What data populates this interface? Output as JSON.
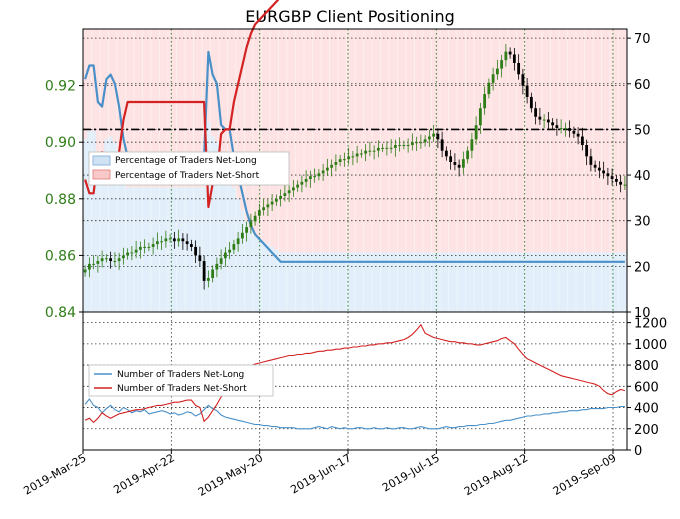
{
  "chart_data": [
    {
      "type": "candlestick",
      "title": "EURGBP Client Positioning",
      "x_ticks": [
        "2019-Mar-25",
        "2019-Apr-22",
        "2019-May-20",
        "2019-Jun-17",
        "2019-Jul-15",
        "2019-Aug-12",
        "2019-Sep-09"
      ],
      "price_axis": {
        "ylim": [
          0.84,
          0.94
        ],
        "ticks": [
          "0.84",
          "0.86",
          "0.88",
          "0.90",
          "0.92"
        ]
      },
      "percent_axis": {
        "ylim": [
          10,
          72
        ],
        "ticks": [
          "10",
          "20",
          "30",
          "40",
          "50",
          "60",
          "70"
        ]
      },
      "reference_line": {
        "axis": "percent",
        "value": 50,
        "style": "dash-dot"
      },
      "colors": {
        "up": "#2e7d17",
        "down": "#000000",
        "net_long": "#4a90c8",
        "net_short": "#d42222",
        "long_fill": "#e2eef9",
        "short_fill": "#fde3e3",
        "grid": "#1f7a1f"
      },
      "legend": {
        "position": "left",
        "entries": [
          "Percentage of Traders Net-Long",
          "Percentage of Traders Net-Short"
        ]
      },
      "price_close": [
        0.855,
        0.857,
        0.857,
        0.858,
        0.859,
        0.859,
        0.858,
        0.858,
        0.859,
        0.86,
        0.861,
        0.861,
        0.862,
        0.863,
        0.863,
        0.863,
        0.864,
        0.865,
        0.865,
        0.866,
        0.866,
        0.865,
        0.866,
        0.865,
        0.864,
        0.863,
        0.86,
        0.858,
        0.851,
        0.852,
        0.855,
        0.857,
        0.859,
        0.861,
        0.862,
        0.864,
        0.866,
        0.868,
        0.87,
        0.872,
        0.874,
        0.876,
        0.877,
        0.878,
        0.879,
        0.88,
        0.881,
        0.882,
        0.883,
        0.884,
        0.885,
        0.886,
        0.887,
        0.888,
        0.888,
        0.889,
        0.89,
        0.891,
        0.892,
        0.893,
        0.894,
        0.894,
        0.895,
        0.895,
        0.896,
        0.896,
        0.897,
        0.897,
        0.897,
        0.898,
        0.898,
        0.898,
        0.898,
        0.899,
        0.899,
        0.899,
        0.899,
        0.9,
        0.9,
        0.9,
        0.901,
        0.902,
        0.903,
        0.901,
        0.897,
        0.895,
        0.893,
        0.892,
        0.891,
        0.894,
        0.897,
        0.901,
        0.906,
        0.912,
        0.917,
        0.921,
        0.924,
        0.926,
        0.929,
        0.932,
        0.931,
        0.928,
        0.924,
        0.92,
        0.916,
        0.912,
        0.909,
        0.908,
        0.908,
        0.907,
        0.906,
        0.905,
        0.905,
        0.905,
        0.904,
        0.903,
        0.902,
        0.899,
        0.895,
        0.892,
        0.891,
        0.89,
        0.889,
        0.888,
        0.887,
        0.886,
        0.885,
        0.885
      ],
      "series": [
        {
          "name": "Percentage of Traders Net-Long",
          "values": [
            61,
            64,
            64,
            56,
            55,
            61,
            62,
            60,
            55,
            48,
            44,
            44,
            44,
            44,
            44,
            44,
            44,
            44,
            44,
            44,
            44,
            44,
            44,
            44,
            44,
            44,
            44,
            44,
            44,
            67,
            62,
            60,
            51,
            50,
            50,
            44,
            40,
            36,
            32,
            29,
            27,
            26,
            25,
            24,
            23,
            22,
            21,
            21,
            21,
            21,
            21,
            21,
            21,
            21,
            21,
            21,
            21,
            21,
            21,
            21,
            21,
            21,
            21,
            21,
            21,
            21,
            21,
            21,
            21,
            21,
            21,
            21,
            21,
            21,
            21,
            21,
            21,
            21,
            21,
            21,
            21,
            21,
            21,
            21,
            21,
            21,
            21,
            21,
            21,
            21,
            21,
            21,
            21,
            21,
            21,
            21,
            21,
            21,
            21,
            21,
            21,
            21,
            21,
            21,
            21,
            21,
            21,
            21,
            21,
            21,
            21,
            21,
            21,
            21,
            21,
            21,
            21,
            21,
            21,
            21,
            21,
            21,
            21,
            21,
            21,
            21,
            21,
            21
          ]
        },
        {
          "name": "Percentage of Traders Net-Short",
          "values": [
            39,
            36,
            36,
            44,
            45,
            39,
            38,
            40,
            45,
            52,
            56,
            56,
            56,
            56,
            56,
            56,
            56,
            56,
            56,
            56,
            56,
            56,
            56,
            56,
            56,
            56,
            56,
            56,
            56,
            33,
            38,
            40,
            49,
            50,
            50,
            56,
            60,
            64,
            68,
            71,
            73,
            74,
            75,
            76,
            77,
            78,
            79,
            79,
            79,
            79,
            79,
            79,
            79,
            79,
            79,
            79,
            79,
            79,
            79,
            79,
            79,
            79,
            79,
            79,
            79,
            79,
            79,
            79,
            79,
            79,
            79,
            79,
            79,
            79,
            79,
            79,
            79,
            79,
            79,
            79,
            79,
            79,
            79,
            79,
            79,
            79,
            79,
            79,
            79,
            79,
            79,
            79,
            79,
            79,
            79,
            79,
            79,
            79,
            79,
            79,
            79,
            79,
            79,
            79,
            79,
            79,
            79,
            79,
            79,
            79,
            79,
            79,
            79,
            79,
            79,
            79,
            79,
            79,
            79,
            79,
            79,
            79,
            79,
            79,
            79,
            79,
            79,
            79
          ]
        }
      ]
    },
    {
      "type": "line",
      "y_ticks": [
        "0",
        "200",
        "400",
        "600",
        "800",
        "1000",
        "1200"
      ],
      "ylim": [
        0,
        1300
      ],
      "legend": {
        "position": "left",
        "entries": [
          "Number of Traders Net-Long",
          "Number of Traders Net-Short"
        ]
      },
      "series": [
        {
          "name": "Number of Traders Net-Long",
          "values": [
            430,
            480,
            420,
            400,
            350,
            390,
            420,
            380,
            360,
            400,
            380,
            350,
            370,
            360,
            380,
            340,
            350,
            360,
            370,
            360,
            340,
            350,
            330,
            340,
            360,
            350,
            320,
            340,
            380,
            420,
            390,
            370,
            330,
            310,
            300,
            290,
            280,
            270,
            260,
            250,
            240,
            240,
            230,
            230,
            220,
            220,
            210,
            210,
            210,
            210,
            200,
            200,
            200,
            200,
            210,
            220,
            210,
            200,
            220,
            210,
            200,
            210,
            200,
            200,
            210,
            210,
            200,
            200,
            210,
            200,
            200,
            210,
            200,
            200,
            210,
            210,
            200,
            200,
            210,
            220,
            210,
            200,
            200,
            200,
            210,
            220,
            210,
            210,
            220,
            220,
            230,
            230,
            230,
            240,
            240,
            250,
            250,
            260,
            270,
            280,
            280,
            290,
            300,
            310,
            320,
            320,
            330,
            330,
            340,
            340,
            350,
            350,
            360,
            360,
            370,
            370,
            370,
            380,
            380,
            390,
            390,
            390,
            390,
            400,
            400,
            400,
            410,
            410
          ]
        },
        {
          "name": "Number of Traders Net-Short",
          "values": [
            280,
            300,
            260,
            300,
            350,
            320,
            300,
            320,
            340,
            350,
            360,
            370,
            380,
            380,
            390,
            400,
            410,
            420,
            420,
            430,
            440,
            450,
            450,
            460,
            470,
            470,
            420,
            400,
            270,
            310,
            370,
            430,
            500,
            560,
            610,
            660,
            700,
            740,
            770,
            790,
            810,
            820,
            830,
            840,
            850,
            860,
            870,
            880,
            890,
            890,
            900,
            900,
            910,
            910,
            920,
            930,
            930,
            940,
            940,
            950,
            950,
            960,
            960,
            970,
            970,
            980,
            980,
            990,
            990,
            1000,
            1000,
            1010,
            1010,
            1020,
            1030,
            1040,
            1060,
            1090,
            1130,
            1180,
            1100,
            1080,
            1060,
            1050,
            1040,
            1030,
            1020,
            1020,
            1010,
            1010,
            1000,
            1000,
            990,
            990,
            1000,
            1010,
            1020,
            1030,
            1050,
            1060,
            1030,
            1000,
            950,
            900,
            860,
            840,
            820,
            800,
            780,
            760,
            740,
            720,
            700,
            690,
            680,
            670,
            660,
            650,
            640,
            630,
            620,
            600,
            560,
            530,
            520,
            550,
            570,
            560
          ]
        }
      ]
    }
  ]
}
